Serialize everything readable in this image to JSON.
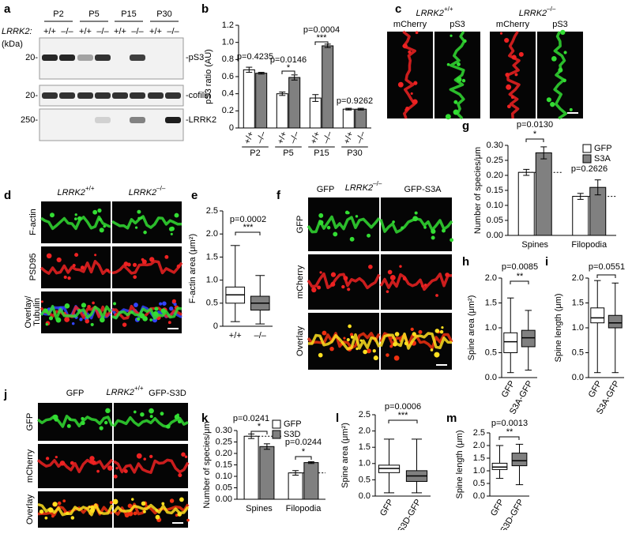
{
  "panel_letters": [
    "a",
    "b",
    "c",
    "d",
    "e",
    "f",
    "g",
    "h",
    "i",
    "j",
    "k",
    "l",
    "m"
  ],
  "blot": {
    "ages": [
      "P2",
      "P5",
      "P15",
      "P30"
    ],
    "gene": "LRRK2:",
    "genotypes": [
      "+/+",
      "–/–",
      "+/+",
      "–/–",
      "+/+",
      "–/–",
      "+/+",
      "–/–"
    ],
    "unit": "(kDa)",
    "markers": [
      "20-",
      "20-",
      "250-"
    ],
    "proteins": [
      "-pS3",
      "-cofilin",
      "-LRRK2"
    ]
  },
  "images_c": {
    "gene": [
      "LRRK2",
      "LRRK2"
    ],
    "genotypes": [
      "+/+",
      "–/–"
    ],
    "channels": [
      "mCherry",
      "pS3",
      "mCherry",
      "pS3"
    ]
  },
  "images_d": {
    "gene": [
      "LRRK2",
      "LRRK2"
    ],
    "genotypes": [
      "+/+",
      "–/–"
    ],
    "rows": [
      "F-actin",
      "PSD95",
      "Overlay/",
      "Tubulin"
    ]
  },
  "images_f": {
    "constructs": [
      "GFP",
      "GFP-S3A"
    ],
    "gene": "LRRK2",
    "genotype": "–/–",
    "rows": [
      "GFP",
      "mCherry",
      "Overlay"
    ]
  },
  "images_j": {
    "constructs": [
      "GFP",
      "GFP-S3D"
    ],
    "gene": "LRRK2",
    "genotype": "+/+",
    "rows": [
      "GFP",
      "mCherry",
      "Overlay"
    ]
  },
  "chart_data": [
    {
      "type": "bar",
      "ylabel": "pS3 ratio (AU)",
      "categories": [
        "P2",
        "P5",
        "P15",
        "P30"
      ],
      "series": [
        {
          "name": "+/+",
          "color": "#ffffff",
          "values": [
            0.68,
            0.4,
            0.35,
            0.22
          ],
          "errors": [
            0.03,
            0.02,
            0.04,
            0.01
          ]
        },
        {
          "name": "–/–",
          "color": "#808080",
          "values": [
            0.64,
            0.59,
            0.96,
            0.22
          ],
          "errors": [
            0.01,
            0.03,
            0.02,
            0.01
          ]
        }
      ],
      "ylim": [
        0,
        1.2
      ],
      "yticks": [
        0,
        0.2,
        0.4,
        0.6,
        0.8,
        {
          "value": 1,
          "label": "1.0"
        },
        1.2
      ],
      "annotations": [
        "p=0.4235",
        "p=0.0146",
        "*",
        "p=0.0004",
        "***",
        "p=0.9262"
      ]
    },
    {
      "type": "box",
      "ylabel": "F-actin area (μm²)",
      "categories": [
        "+/+",
        "–/–"
      ],
      "colors": [
        "#ffffff",
        "#808080"
      ],
      "boxes": [
        {
          "min": 0.1,
          "q1": 0.5,
          "median": 0.68,
          "q3": 0.85,
          "max": 1.75
        },
        {
          "min": 0.05,
          "q1": 0.35,
          "median": 0.5,
          "q3": 0.65,
          "max": 1.1
        }
      ],
      "ylim": [
        0,
        2.5
      ],
      "yticks": [
        0,
        0.5,
        {
          "value": 1,
          "label": "1.0"
        },
        1.5,
        {
          "value": 2,
          "label": "2.0"
        },
        2.5
      ],
      "annotations": [
        "p=0.0002",
        "***"
      ]
    },
    {
      "type": "bar",
      "ylabel": "Number of species/μm",
      "categories": [
        "Spines",
        "Filopodia"
      ],
      "legend": "upper right",
      "series": [
        {
          "name": "GFP",
          "color": "#ffffff",
          "values": [
            0.21,
            0.13
          ],
          "errors": [
            0.01,
            0.01
          ]
        },
        {
          "name": "S3A",
          "color": "#808080",
          "values": [
            0.275,
            0.16
          ],
          "errors": [
            0.02,
            0.025
          ]
        }
      ],
      "ylim": [
        0,
        0.3
      ],
      "yticks": [
        {
          "value": 0,
          "label": "0.00"
        },
        {
          "value": 0.05,
          "label": "0.05"
        },
        {
          "value": 0.1,
          "label": "0.10"
        },
        {
          "value": 0.15,
          "label": "0.15"
        },
        {
          "value": 0.2,
          "label": "0.20"
        },
        {
          "value": 0.25,
          "label": "0.25"
        },
        {
          "value": 0.3,
          "label": "0.30"
        }
      ],
      "annotations": [
        "p=0.0130",
        "*",
        "p=0.2626"
      ]
    },
    {
      "type": "box",
      "ylabel": "Spine area (μm²)",
      "categories": [
        "GFP",
        "S3A-GFP"
      ],
      "colors": [
        "#ffffff",
        "#808080"
      ],
      "boxes": [
        {
          "min": 0.1,
          "q1": 0.5,
          "median": 0.72,
          "q3": 0.9,
          "max": 1.6
        },
        {
          "min": 0.15,
          "q1": 0.62,
          "median": 0.8,
          "q3": 0.95,
          "max": 1.35
        }
      ],
      "ylim": [
        0,
        2
      ],
      "yticks": [
        {
          "value": 0,
          "label": "0.0"
        },
        0.5,
        {
          "value": 1,
          "label": "1.0"
        },
        1.5,
        {
          "value": 2,
          "label": "2.0"
        }
      ],
      "annotations": [
        "p=0.0085",
        "**"
      ]
    },
    {
      "type": "box",
      "ylabel": "Spine length (μm)",
      "categories": [
        "GFP",
        "S3A-GFP"
      ],
      "colors": [
        "#ffffff",
        "#808080"
      ],
      "boxes": [
        {
          "min": 0.1,
          "q1": 1.1,
          "median": 1.2,
          "q3": 1.4,
          "max": 1.95
        },
        {
          "min": 0.1,
          "q1": 1.0,
          "median": 1.1,
          "q3": 1.25,
          "max": 1.9
        }
      ],
      "ylim": [
        0,
        2
      ],
      "yticks": [
        {
          "value": 0,
          "label": "0.0"
        },
        0.5,
        {
          "value": 1,
          "label": "1.0"
        },
        1.5,
        {
          "value": 2,
          "label": "2.0"
        }
      ],
      "annotations": [
        "p=0.0551"
      ]
    },
    {
      "type": "bar",
      "ylabel": "Number of species/μm",
      "categories": [
        "Spines",
        "Filopodia"
      ],
      "legend": "upper right",
      "series": [
        {
          "name": "GFP",
          "color": "#ffffff",
          "values": [
            0.275,
            0.115
          ],
          "errors": [
            0.01,
            0.01
          ]
        },
        {
          "name": "S3D",
          "color": "#808080",
          "values": [
            0.23,
            0.16
          ],
          "errors": [
            0.012,
            0.004
          ]
        }
      ],
      "ylim": [
        0,
        0.3
      ],
      "yticks": [
        {
          "value": 0,
          "label": "0.00"
        },
        {
          "value": 0.05,
          "label": "0.05"
        },
        {
          "value": 0.1,
          "label": "0.10"
        },
        {
          "value": 0.15,
          "label": "0.15"
        },
        {
          "value": 0.2,
          "label": "0.20"
        },
        {
          "value": 0.25,
          "label": "0.25"
        },
        {
          "value": 0.3,
          "label": "0.30"
        }
      ],
      "annotations": [
        "p=0.0241",
        "*",
        "p=0.0244",
        "*"
      ]
    },
    {
      "type": "box",
      "ylabel": "Spine area (μm²)",
      "categories": [
        "GFP",
        "S3D-GFP"
      ],
      "colors": [
        "#ffffff",
        "#808080"
      ],
      "boxes": [
        {
          "min": 0.1,
          "q1": 0.72,
          "median": 0.85,
          "q3": 0.95,
          "max": 1.75
        },
        {
          "min": 0.1,
          "q1": 0.45,
          "median": 0.62,
          "q3": 0.78,
          "max": 1.75
        }
      ],
      "ylim": [
        0,
        2.5
      ],
      "yticks": [
        {
          "value": 0,
          "label": "0.0"
        },
        0.5,
        {
          "value": 1,
          "label": "1.0"
        },
        1.5,
        {
          "value": 2,
          "label": "2.0"
        },
        2.5
      ],
      "annotations": [
        "p=0.0006",
        "***"
      ]
    },
    {
      "type": "box",
      "ylabel": "Spine length (μm)",
      "categories": [
        "GFP",
        "S3D-GFP"
      ],
      "colors": [
        "#ffffff",
        "#808080"
      ],
      "boxes": [
        {
          "min": 0.7,
          "q1": 1.05,
          "median": 1.15,
          "q3": 1.3,
          "max": 2.0
        },
        {
          "min": 0.45,
          "q1": 1.2,
          "median": 1.4,
          "q3": 1.7,
          "max": 2.05
        }
      ],
      "ylim": [
        0,
        2.5
      ],
      "yticks": [
        {
          "value": 0,
          "label": "0.0"
        },
        0.5,
        {
          "value": 1,
          "label": "1.0"
        },
        1.5,
        {
          "value": 2,
          "label": "2.0"
        },
        2.5
      ],
      "annotations": [
        "p=0.0013",
        "**"
      ]
    }
  ]
}
